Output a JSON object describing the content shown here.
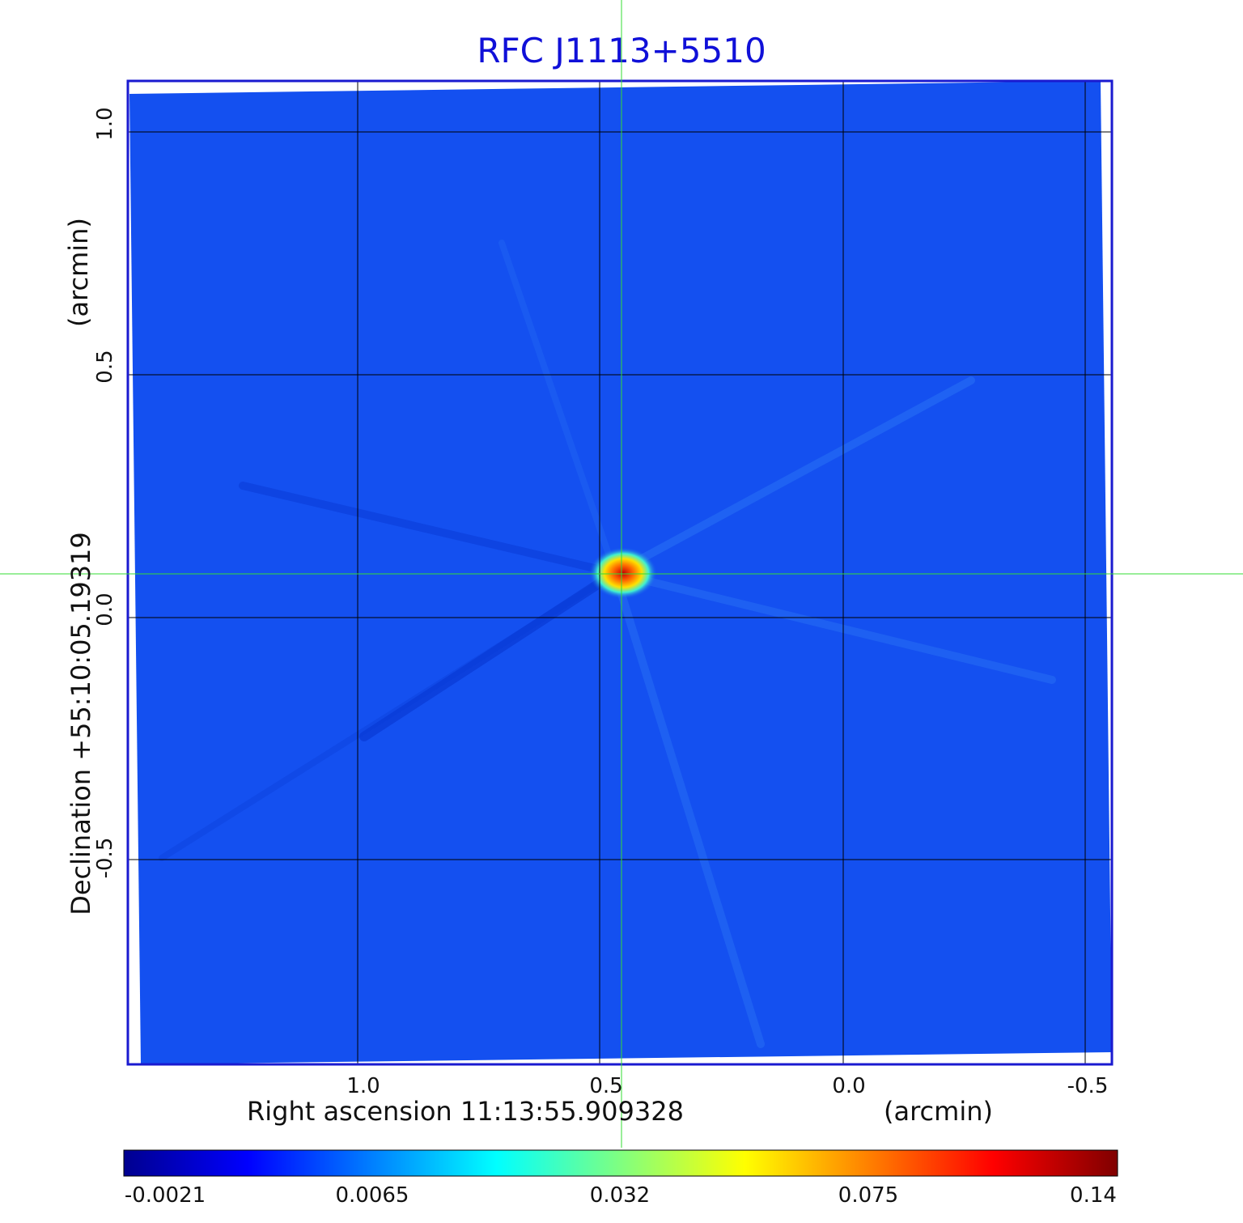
{
  "title": "RFC J1113+5510",
  "x_axis": {
    "label": "Right ascension  11:13:55.909328",
    "unit": "(arcmin)",
    "ticks": [
      "1.0",
      "0.5",
      "0.0",
      "-0.5"
    ]
  },
  "y_axis": {
    "label": "Declination  +55:10:05.19319",
    "unit": "(arcmin)",
    "ticks": [
      "1.0",
      "0.5",
      "0.0",
      "-0.5"
    ]
  },
  "colorbar": {
    "ticks": [
      "-0.0021",
      "0.0065",
      "0.032",
      "0.075",
      "0.14"
    ],
    "colormap": "jet"
  },
  "colors": {
    "title": "#1010d8",
    "frame": "#1a1ad0",
    "background_map": "#1450f0",
    "crosshair": "#33dd33",
    "grid": "#000000"
  },
  "image": {
    "source_peak": "0.14"
  }
}
